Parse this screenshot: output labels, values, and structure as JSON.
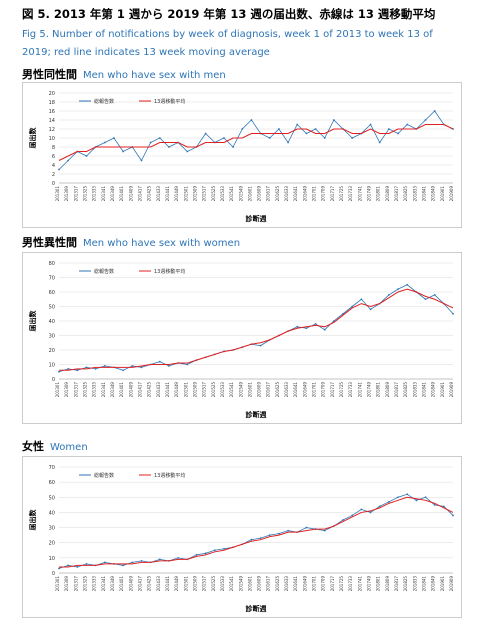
{
  "header": {
    "title": "図 5.  2013 年第 1 週から 2019 年第 13 週の届出数、赤線は 13 週移動平均",
    "subtitle": "Fig 5. Number of notifications by week of diagnosis, week 1 of 2013 to week 13 of 2019; red line indicates 13 week moving average"
  },
  "chart_data": [
    {
      "type": "line",
      "title": "男性同性間",
      "subtitle": "Men who have sex with men",
      "y_label": "届出数",
      "x_label": "診断週",
      "categories": [
        "201301",
        "201309",
        "201317",
        "201325",
        "201333",
        "201341",
        "201349",
        "201401",
        "201409",
        "201417",
        "201425",
        "201433",
        "201441",
        "201449",
        "201501",
        "201509",
        "201517",
        "201525",
        "201533",
        "201541",
        "201549",
        "201601",
        "201609",
        "201617",
        "201625",
        "201633",
        "201641",
        "201649",
        "201701",
        "201709",
        "201717",
        "201725",
        "201733",
        "201741",
        "201749",
        "201801",
        "201809",
        "201817",
        "201825",
        "201833",
        "201841",
        "201849",
        "201901",
        "201909"
      ],
      "series": [
        {
          "name": "総報告数",
          "color": "#2e75b6",
          "values": [
            3,
            5,
            7,
            6,
            8,
            9,
            10,
            7,
            8,
            5,
            9,
            10,
            8,
            9,
            7,
            8,
            11,
            9,
            10,
            8,
            12,
            14,
            11,
            10,
            12,
            9,
            13,
            11,
            12,
            10,
            14,
            12,
            10,
            11,
            13,
            9,
            12,
            11,
            13,
            12,
            14,
            16,
            13,
            12
          ]
        },
        {
          "name": "13週移動平均",
          "color": "#e02020",
          "values": [
            5,
            6,
            7,
            7,
            8,
            8,
            8,
            8,
            8,
            8,
            8,
            9,
            9,
            9,
            8,
            8,
            9,
            9,
            9,
            10,
            10,
            11,
            11,
            11,
            11,
            11,
            12,
            12,
            11,
            11,
            12,
            12,
            11,
            11,
            12,
            11,
            11,
            12,
            12,
            12,
            13,
            13,
            13,
            12
          ]
        }
      ],
      "ylim": [
        0,
        20
      ],
      "yticks": [
        0,
        2,
        4,
        6,
        8,
        10,
        12,
        14,
        16,
        18,
        20
      ],
      "grid": true,
      "legend": "top-left"
    },
    {
      "type": "line",
      "title": "男性異性間",
      "subtitle": "Men who have sex with women",
      "y_label": "届出数",
      "x_label": "診断週",
      "categories": [
        "201301",
        "201309",
        "201317",
        "201325",
        "201333",
        "201341",
        "201349",
        "201401",
        "201409",
        "201417",
        "201425",
        "201433",
        "201441",
        "201449",
        "201501",
        "201509",
        "201517",
        "201525",
        "201533",
        "201541",
        "201549",
        "201601",
        "201609",
        "201617",
        "201625",
        "201633",
        "201641",
        "201649",
        "201701",
        "201709",
        "201717",
        "201725",
        "201733",
        "201741",
        "201749",
        "201801",
        "201809",
        "201817",
        "201825",
        "201833",
        "201841",
        "201849",
        "201901",
        "201909"
      ],
      "series": [
        {
          "name": "総報告数",
          "color": "#2e75b6",
          "values": [
            5,
            7,
            6,
            8,
            7,
            9,
            8,
            6,
            9,
            8,
            10,
            12,
            9,
            11,
            10,
            13,
            15,
            17,
            19,
            20,
            22,
            24,
            23,
            27,
            30,
            33,
            36,
            35,
            38,
            34,
            40,
            45,
            50,
            55,
            48,
            52,
            58,
            62,
            65,
            60,
            55,
            58,
            52,
            45
          ]
        },
        {
          "name": "13週移動平均",
          "color": "#e02020",
          "values": [
            6,
            6,
            7,
            7,
            8,
            8,
            8,
            8,
            8,
            9,
            10,
            10,
            10,
            11,
            11,
            13,
            15,
            17,
            19,
            20,
            22,
            24,
            25,
            27,
            30,
            33,
            35,
            36,
            37,
            36,
            39,
            44,
            49,
            52,
            50,
            52,
            56,
            60,
            62,
            60,
            57,
            55,
            52,
            49
          ]
        }
      ],
      "ylim": [
        0,
        80
      ],
      "yticks": [
        0,
        10,
        20,
        30,
        40,
        50,
        60,
        70,
        80
      ],
      "grid": true,
      "legend": "top-left"
    },
    {
      "type": "line",
      "title": "女性",
      "subtitle": "Women",
      "y_label": "届出数",
      "x_label": "診断週",
      "categories": [
        "201301",
        "201309",
        "201317",
        "201325",
        "201333",
        "201341",
        "201349",
        "201401",
        "201409",
        "201417",
        "201425",
        "201433",
        "201441",
        "201449",
        "201501",
        "201509",
        "201517",
        "201525",
        "201533",
        "201541",
        "201549",
        "201601",
        "201609",
        "201617",
        "201625",
        "201633",
        "201641",
        "201649",
        "201701",
        "201709",
        "201717",
        "201725",
        "201733",
        "201741",
        "201749",
        "201801",
        "201809",
        "201817",
        "201825",
        "201833",
        "201841",
        "201849",
        "201901",
        "201909"
      ],
      "series": [
        {
          "name": "総報告数",
          "color": "#2e75b6",
          "values": [
            3,
            5,
            4,
            6,
            5,
            7,
            6,
            5,
            7,
            8,
            7,
            9,
            8,
            10,
            9,
            12,
            13,
            15,
            16,
            17,
            19,
            22,
            23,
            25,
            26,
            28,
            27,
            30,
            29,
            28,
            31,
            35,
            38,
            42,
            40,
            44,
            47,
            50,
            52,
            48,
            50,
            45,
            44,
            38
          ]
        },
        {
          "name": "13週移動平均",
          "color": "#e02020",
          "values": [
            4,
            4,
            5,
            5,
            5,
            6,
            6,
            6,
            6,
            7,
            7,
            8,
            8,
            9,
            9,
            11,
            12,
            14,
            15,
            17,
            19,
            21,
            22,
            24,
            25,
            27,
            27,
            28,
            29,
            29,
            31,
            34,
            37,
            40,
            41,
            43,
            46,
            48,
            50,
            49,
            48,
            46,
            43,
            40
          ]
        }
      ],
      "ylim": [
        0,
        70
      ],
      "yticks": [
        0,
        10,
        20,
        30,
        40,
        50,
        60,
        70
      ],
      "grid": true,
      "legend": "top-left"
    }
  ]
}
